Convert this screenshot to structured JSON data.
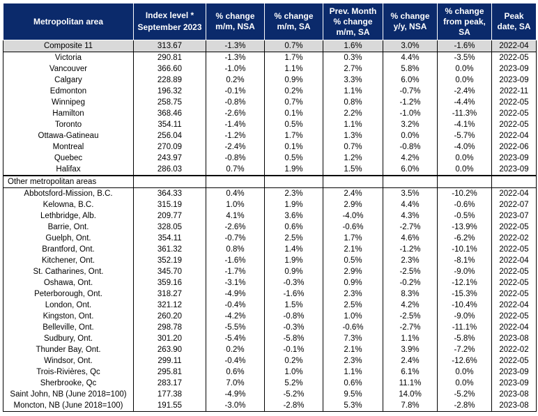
{
  "headers": [
    {
      "top": "Metropolitan area",
      "bot": ""
    },
    {
      "top": "Index level *",
      "bot": "September 2023"
    },
    {
      "top": "% change m/m, NSA",
      "bot": ""
    },
    {
      "top": "% change m/m, SA",
      "bot": ""
    },
    {
      "top": "Prev. Month % change m/m, SA",
      "bot": ""
    },
    {
      "top": "% change y/y, NSA",
      "bot": ""
    },
    {
      "top": "% change from peak, SA",
      "bot": ""
    },
    {
      "top": "Peak date, SA",
      "bot": ""
    }
  ],
  "composite": [
    "Composite 11",
    "313.67",
    "-1.3%",
    "0.7%",
    "1.6%",
    "3.0%",
    "-1.6%",
    "2022-04"
  ],
  "metro_rows": [
    [
      "Victoria",
      "290.81",
      "-1.3%",
      "1.7%",
      "0.3%",
      "4.4%",
      "-3.5%",
      "2022-05"
    ],
    [
      "Vancouver",
      "366.60",
      "-1.0%",
      "1.1%",
      "2.7%",
      "5.8%",
      "0.0%",
      "2023-09"
    ],
    [
      "Calgary",
      "228.89",
      "0.2%",
      "0.9%",
      "3.3%",
      "6.0%",
      "0.0%",
      "2023-09"
    ],
    [
      "Edmonton",
      "196.32",
      "-0.1%",
      "0.2%",
      "1.1%",
      "-0.7%",
      "-2.4%",
      "2022-11"
    ],
    [
      "Winnipeg",
      "258.75",
      "-0.8%",
      "0.7%",
      "0.8%",
      "-1.2%",
      "-4.4%",
      "2022-05"
    ],
    [
      "Hamilton",
      "368.46",
      "-2.6%",
      "0.1%",
      "2.2%",
      "-1.0%",
      "-11.3%",
      "2022-05"
    ],
    [
      "Toronto",
      "354.11",
      "-1.4%",
      "0.5%",
      "1.1%",
      "3.2%",
      "-4.1%",
      "2022-05"
    ],
    [
      "Ottawa-Gatineau",
      "256.04",
      "-1.2%",
      "1.7%",
      "1.3%",
      "0.0%",
      "-5.7%",
      "2022-04"
    ],
    [
      "Montreal",
      "270.09",
      "-2.4%",
      "0.1%",
      "0.7%",
      "-0.8%",
      "-4.0%",
      "2022-06"
    ],
    [
      "Quebec",
      "243.97",
      "-0.8%",
      "0.5%",
      "1.2%",
      "4.2%",
      "0.0%",
      "2023-09"
    ],
    [
      "Halifax",
      "286.03",
      "0.7%",
      "1.9%",
      "1.5%",
      "6.0%",
      "0.0%",
      "2023-09"
    ]
  ],
  "section_label": "Other metropolitan areas",
  "other_rows": [
    [
      "Abbotsford-Mission, B.C.",
      "364.33",
      "0.4%",
      "2.3%",
      "2.4%",
      "3.5%",
      "-10.2%",
      "2022-04"
    ],
    [
      "Kelowna, B.C.",
      "315.19",
      "1.0%",
      "1.9%",
      "2.9%",
      "4.4%",
      "-0.6%",
      "2022-07"
    ],
    [
      "Lethbridge, Alb.",
      "209.77",
      "4.1%",
      "3.6%",
      "-4.0%",
      "4.3%",
      "-0.5%",
      "2023-07"
    ],
    [
      "Barrie, Ont.",
      "328.05",
      "-2.6%",
      "0.6%",
      "-0.6%",
      "-2.7%",
      "-13.9%",
      "2022-05"
    ],
    [
      "Guelph, Ont.",
      "354.11",
      "-0.7%",
      "2.5%",
      "1.7%",
      "4.6%",
      "-6.2%",
      "2022-02"
    ],
    [
      "Brantford, Ont.",
      "361.32",
      "0.8%",
      "1.4%",
      "2.1%",
      "-1.2%",
      "-10.1%",
      "2022-05"
    ],
    [
      "Kitchener, Ont.",
      "352.19",
      "-1.6%",
      "1.9%",
      "0.5%",
      "2.3%",
      "-8.1%",
      "2022-04"
    ],
    [
      "St. Catharines, Ont.",
      "345.70",
      "-1.7%",
      "0.9%",
      "2.9%",
      "-2.5%",
      "-9.0%",
      "2022-05"
    ],
    [
      "Oshawa, Ont.",
      "359.16",
      "-3.1%",
      "-0.3%",
      "0.9%",
      "-0.2%",
      "-12.1%",
      "2022-05"
    ],
    [
      "Peterborough, Ont.",
      "318.27",
      "-4.9%",
      "-1.6%",
      "2.3%",
      "8.3%",
      "-15.3%",
      "2022-05"
    ],
    [
      "London, Ont.",
      "321.12",
      "-0.4%",
      "1.5%",
      "2.5%",
      "4.2%",
      "-10.4%",
      "2022-04"
    ],
    [
      "Kingston, Ont.",
      "260.20",
      "-4.2%",
      "-0.8%",
      "1.0%",
      "-2.5%",
      "-9.0%",
      "2022-05"
    ],
    [
      "Belleville, Ont.",
      "298.78",
      "-5.5%",
      "-0.3%",
      "-0.6%",
      "-2.7%",
      "-11.1%",
      "2022-04"
    ],
    [
      "Sudbury, Ont.",
      "301.20",
      "-5.4%",
      "-5.8%",
      "7.3%",
      "1.1%",
      "-5.8%",
      "2023-08"
    ],
    [
      "Thunder Bay, Ont.",
      "263.90",
      "0.2%",
      "-0.1%",
      "2.1%",
      "3.9%",
      "-7.2%",
      "2022-02"
    ],
    [
      "Windsor, Ont.",
      "299.11",
      "-0.4%",
      "0.2%",
      "2.3%",
      "2.4%",
      "-12.6%",
      "2022-05"
    ],
    [
      "Trois-Rivières, Qc",
      "295.81",
      "0.6%",
      "1.0%",
      "1.1%",
      "6.1%",
      "0.0%",
      "2023-09"
    ],
    [
      "Sherbrooke, Qc",
      "283.17",
      "7.0%",
      "5.2%",
      "0.6%",
      "11.1%",
      "0.0%",
      "2023-09"
    ],
    [
      "Saint John, NB (June 2018=100)",
      "177.38",
      "-4.9%",
      "-5.2%",
      "9.5%",
      "14.0%",
      "-5.2%",
      "2023-08"
    ],
    [
      "Moncton, NB (June 2018=100)",
      "191.55",
      "-3.0%",
      "-2.8%",
      "5.3%",
      "7.8%",
      "-2.8%",
      "2023-08"
    ]
  ]
}
